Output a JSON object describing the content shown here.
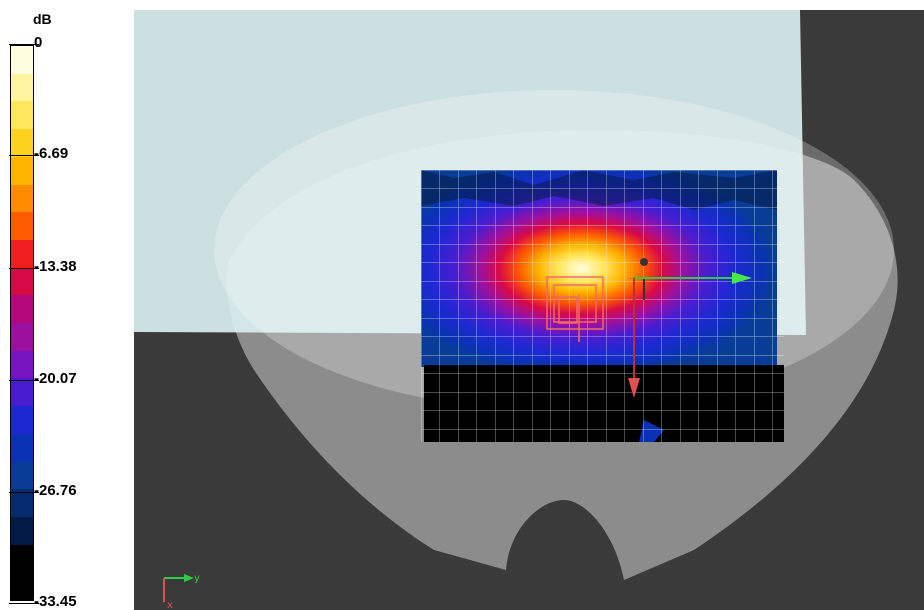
{
  "legend": {
    "unit": "dB",
    "ticks": [
      "0",
      "-6.69",
      "-13.38",
      "-20.07",
      "-26.76",
      "-33.45"
    ],
    "colors": [
      "#fffde0",
      "#fff4a0",
      "#ffe65a",
      "#ffd21e",
      "#ffb400",
      "#ff8c00",
      "#ff5a00",
      "#f01e1e",
      "#d80a46",
      "#b4087a",
      "#9c10a0",
      "#7814c0",
      "#4a1cd0",
      "#1e28d2",
      "#0a32b4",
      "#083c96",
      "#062a6e",
      "#041a46",
      "#000000",
      "#000000"
    ]
  },
  "scene": {
    "axis_labels": {
      "y": "y",
      "x": "x"
    }
  }
}
